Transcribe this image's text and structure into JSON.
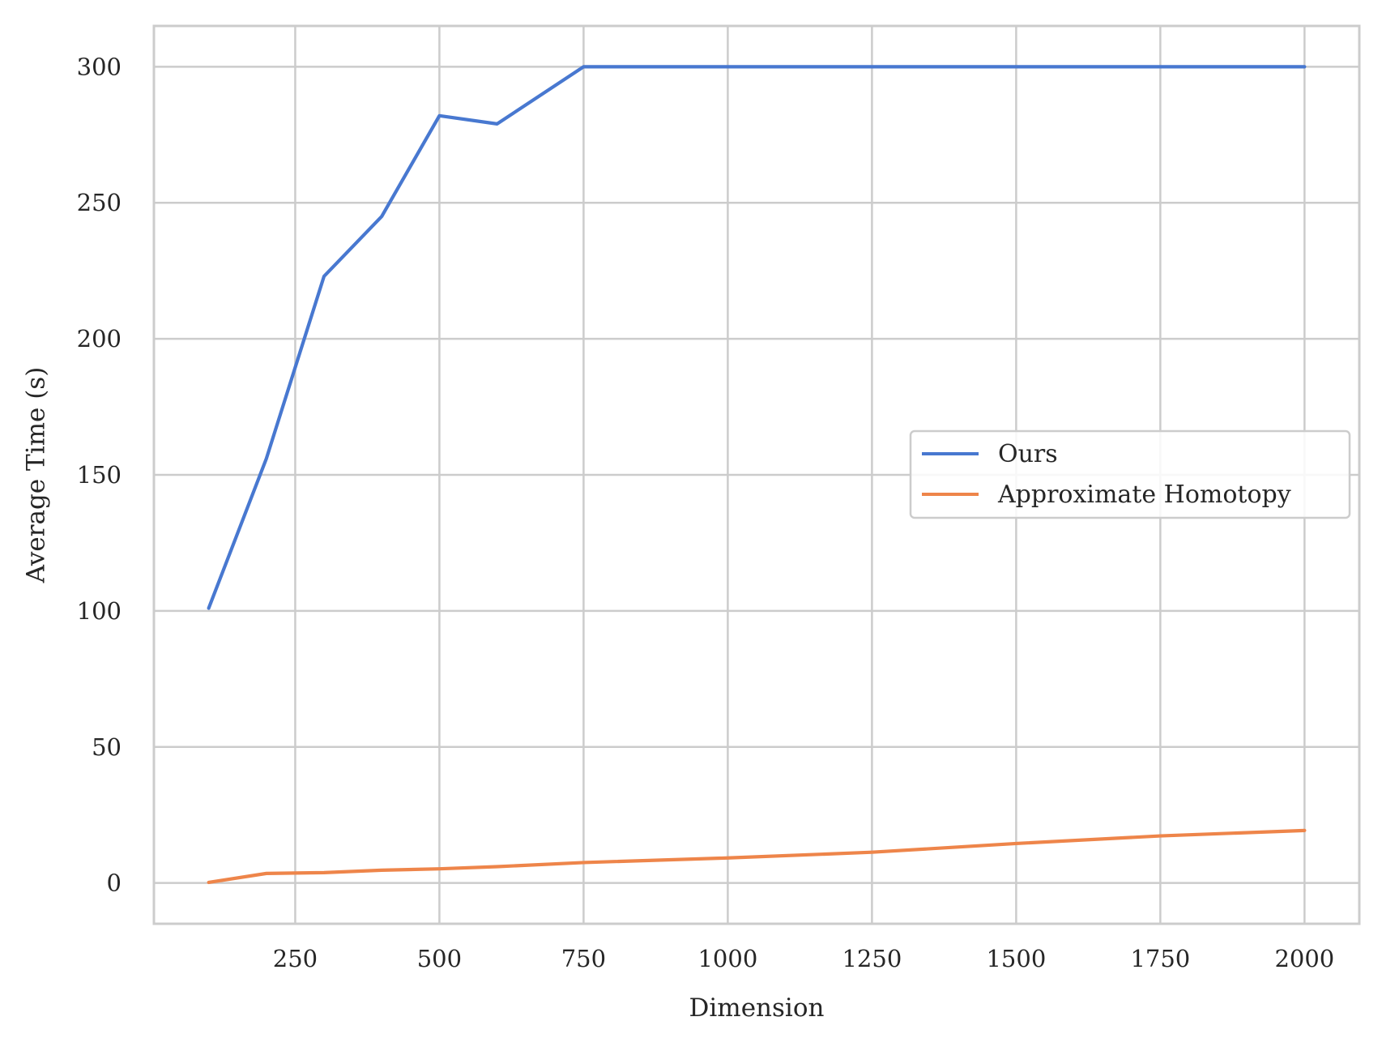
{
  "chart_data": {
    "type": "line",
    "title": "",
    "xlabel": "Dimension",
    "ylabel": "Average Time (s)",
    "xlim": [
      5,
      2095
    ],
    "ylim": [
      -15,
      315
    ],
    "xticks": [
      250,
      500,
      750,
      1000,
      1250,
      1500,
      1750,
      2000
    ],
    "yticks": [
      0,
      50,
      100,
      150,
      200,
      250,
      300
    ],
    "xtick_labels": [
      "250",
      "500",
      "750",
      "1000",
      "1250",
      "1500",
      "1750",
      "2000"
    ],
    "ytick_labels": [
      "0",
      "50",
      "100",
      "150",
      "200",
      "250",
      "300"
    ],
    "grid": true,
    "legend_position": "center-right",
    "series": [
      {
        "name": "Ours",
        "color": "#4878d0",
        "x": [
          100,
          200,
          300,
          400,
          500,
          600,
          750,
          1000,
          1250,
          1500,
          1750,
          2000
        ],
        "y": [
          101,
          156,
          223,
          245,
          282,
          279,
          300,
          300,
          300,
          300,
          300,
          300
        ]
      },
      {
        "name": "Approximate Homotopy",
        "color": "#ee854a",
        "x": [
          100,
          200,
          300,
          400,
          500,
          600,
          750,
          1000,
          1250,
          1500,
          1750,
          2000
        ],
        "y": [
          0.2,
          3.5,
          3.8,
          4.7,
          5.2,
          6.0,
          7.5,
          9.2,
          11.3,
          14.5,
          17.3,
          19.3
        ]
      }
    ]
  }
}
